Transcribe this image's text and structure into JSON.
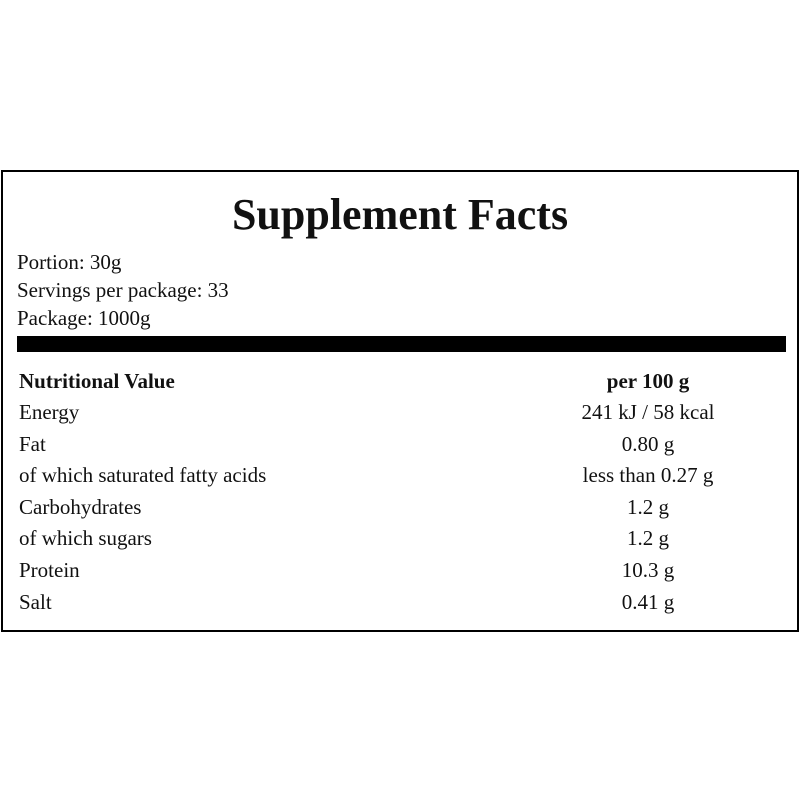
{
  "header": {
    "title": "Supplement Facts",
    "info": [
      "Portion: 30g",
      "Servings per package: 33",
      "Package: 1000g"
    ]
  },
  "table": {
    "columns": [
      "Nutritional Value",
      "per 100 g"
    ],
    "rows": [
      [
        "Energy",
        "241 kJ / 58 kcal"
      ],
      [
        "Fat",
        "0.80 g"
      ],
      [
        "of which saturated fatty acids",
        "less than 0.27 g"
      ],
      [
        "Carbohydrates",
        "1.2 g"
      ],
      [
        "of which sugars",
        "1.2 g"
      ],
      [
        "Protein",
        "10.3 g"
      ],
      [
        "Salt",
        "0.41 g"
      ]
    ]
  }
}
